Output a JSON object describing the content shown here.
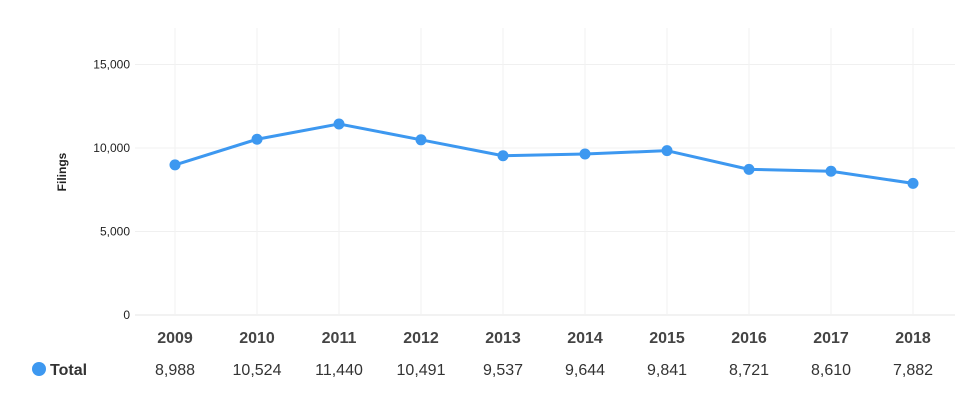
{
  "chart_data": {
    "type": "line",
    "ylabel": "Filings",
    "ylim": [
      0,
      17000
    ],
    "yticks": [
      0,
      5000,
      10000,
      15000
    ],
    "ytick_labels": [
      "0",
      "5,000",
      "10,000",
      "15,000"
    ],
    "grid": true,
    "categories": [
      "2009",
      "2010",
      "2011",
      "2012",
      "2013",
      "2014",
      "2015",
      "2016",
      "2017",
      "2018"
    ],
    "series": [
      {
        "name": "Total",
        "color": "#3d98f0",
        "values": [
          8988,
          10524,
          11440,
          10491,
          9537,
          9644,
          9841,
          8721,
          8610,
          7882
        ],
        "value_labels": [
          "8,988",
          "10,524",
          "11,440",
          "10,491",
          "9,537",
          "9,644",
          "9,841",
          "8,721",
          "8,610",
          "7,882"
        ]
      }
    ]
  }
}
